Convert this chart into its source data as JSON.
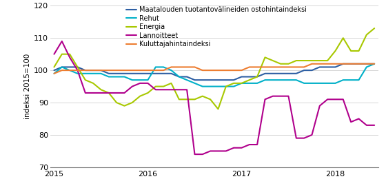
{
  "ylabel": "indeksi 2015=100",
  "ylim": [
    70,
    120
  ],
  "yticks": [
    70,
    80,
    90,
    100,
    110,
    120
  ],
  "xticks_labels": [
    "2015",
    "2016",
    "2017",
    "2018"
  ],
  "xticks_positions": [
    0,
    12,
    24,
    36
  ],
  "series": {
    "Maatalouden tuotantovälineiden ostohintaindeksi": {
      "color": "#2e5fa3",
      "linewidth": 1.5,
      "values": [
        100,
        101,
        101,
        101,
        100,
        100,
        100,
        99,
        99,
        99,
        99,
        99,
        99,
        99,
        99,
        99,
        98,
        98,
        97,
        97,
        97,
        97,
        97,
        97,
        98,
        98,
        98,
        99,
        99,
        99,
        99,
        99,
        100,
        100,
        101,
        101,
        101,
        102,
        102,
        102,
        102,
        102
      ]
    },
    "Rehut": {
      "color": "#00b0c8",
      "linewidth": 1.5,
      "values": [
        99,
        101,
        100,
        99,
        99,
        99,
        99,
        98,
        98,
        98,
        97,
        97,
        97,
        101,
        101,
        100,
        98,
        97,
        96,
        95,
        95,
        95,
        95,
        95,
        96,
        96,
        96,
        97,
        97,
        97,
        97,
        97,
        96,
        96,
        96,
        96,
        96,
        97,
        97,
        97,
        101,
        102
      ]
    },
    "Energia": {
      "color": "#a8c800",
      "linewidth": 1.5,
      "values": [
        101,
        105,
        105,
        101,
        97,
        96,
        94,
        93,
        90,
        89,
        90,
        92,
        93,
        95,
        95,
        96,
        91,
        91,
        91,
        92,
        91,
        88,
        95,
        96,
        96,
        97,
        98,
        104,
        103,
        102,
        102,
        103,
        103,
        103,
        103,
        103,
        106,
        110,
        106,
        106,
        111,
        113
      ]
    },
    "Lannoitteet": {
      "color": "#b0008c",
      "linewidth": 1.5,
      "values": [
        105,
        109,
        104,
        100,
        93,
        93,
        93,
        93,
        93,
        93,
        95,
        96,
        96,
        94,
        94,
        94,
        94,
        94,
        74,
        74,
        75,
        75,
        75,
        76,
        76,
        77,
        77,
        91,
        92,
        92,
        92,
        79,
        79,
        80,
        89,
        91,
        91,
        91,
        84,
        85,
        83,
        83
      ]
    },
    "Kuluttajahintaindeksi": {
      "color": "#ed7d31",
      "linewidth": 1.5,
      "values": [
        99,
        100,
        100,
        100,
        100,
        100,
        100,
        100,
        100,
        100,
        100,
        100,
        100,
        100,
        100,
        101,
        101,
        101,
        101,
        100,
        100,
        100,
        100,
        100,
        100,
        101,
        101,
        101,
        101,
        101,
        101,
        101,
        101,
        102,
        102,
        102,
        102,
        102,
        102,
        102,
        102,
        102
      ]
    }
  },
  "legend_order": [
    "Maatalouden tuotantovälineiden ostohintaindeksi",
    "Rehut",
    "Energia",
    "Lannoitteet",
    "Kuluttajahintaindeksi"
  ],
  "background_color": "#ffffff",
  "grid_color": "#d0d0d0",
  "spine_color": "#808080"
}
